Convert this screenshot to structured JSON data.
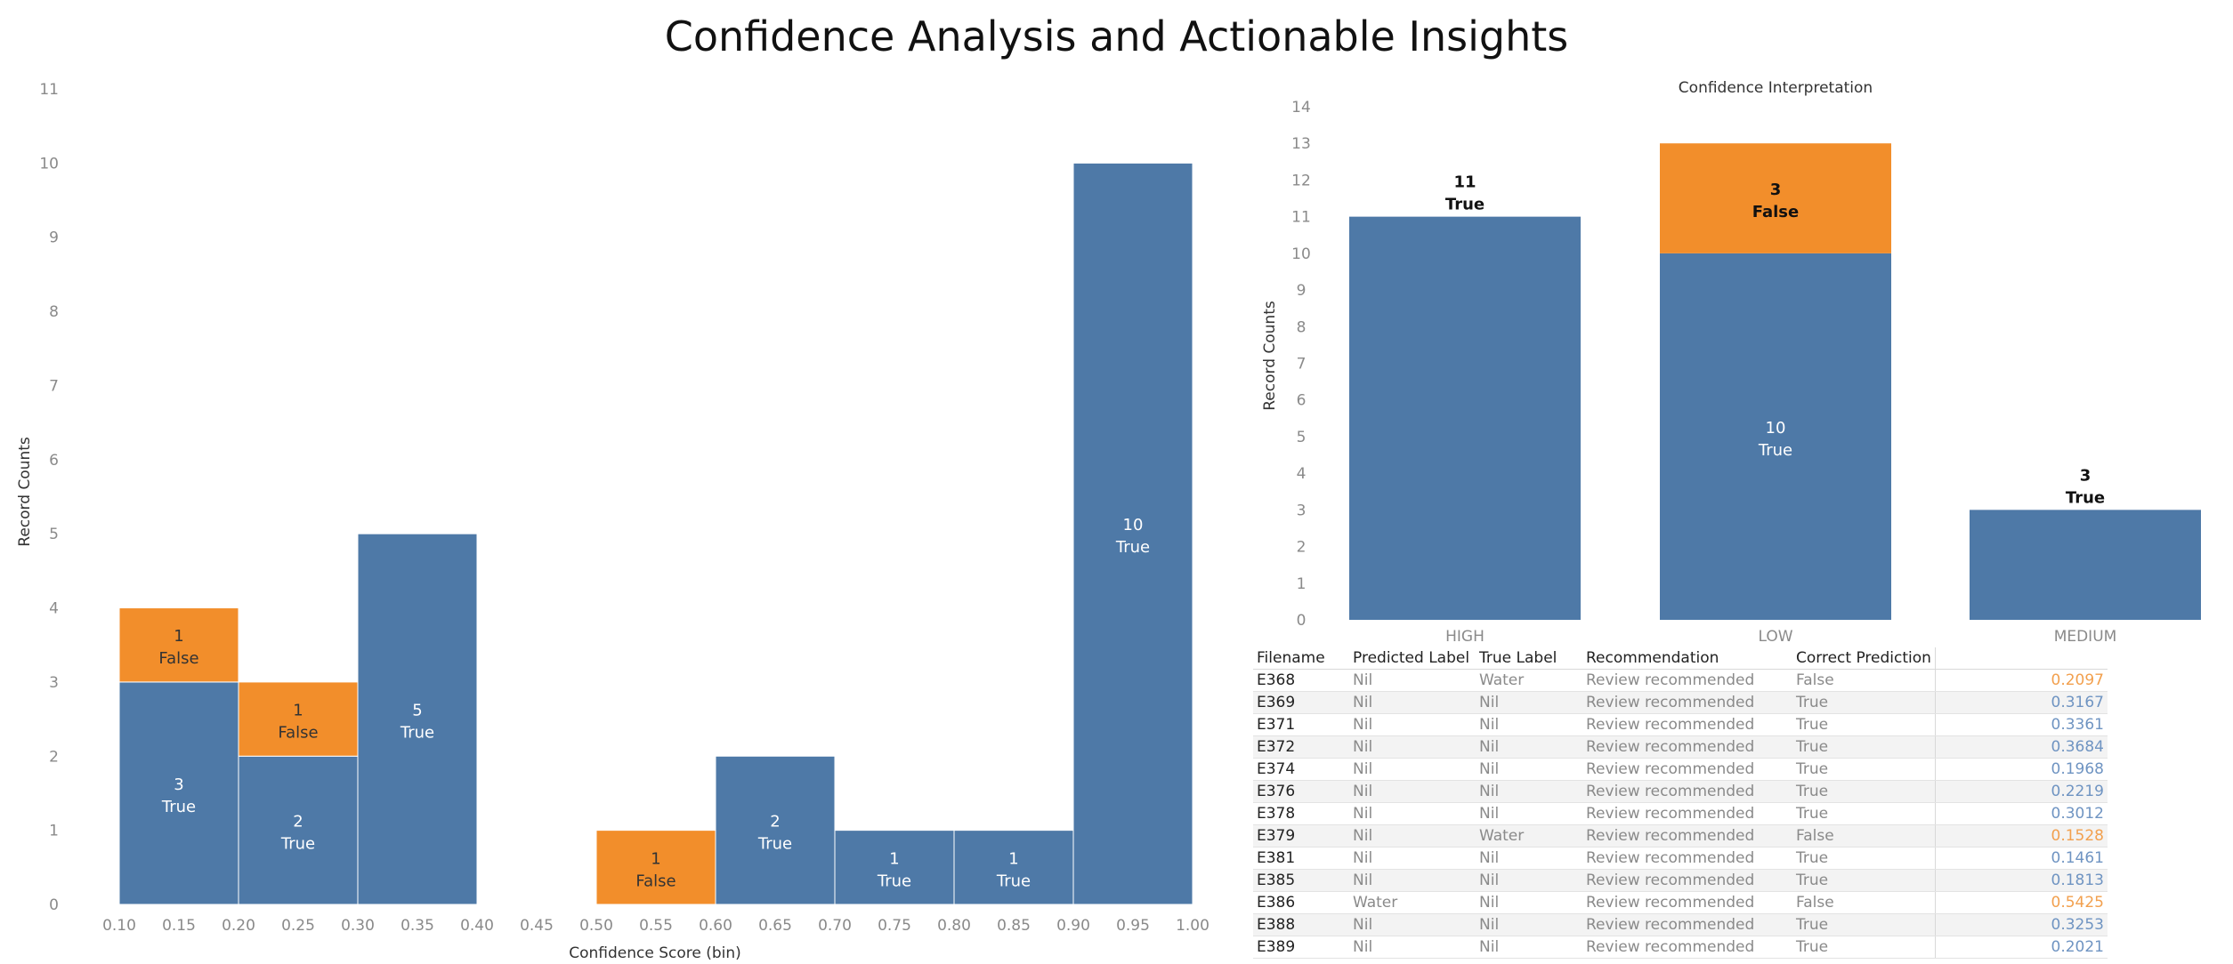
{
  "page": {
    "title": "Confidence Analysis and Actionable Insights"
  },
  "colors": {
    "true": "#4e79a7",
    "false": "#f28e2b",
    "true_hex_score": "#6f94c2",
    "false_hex_score": "#f2a04e"
  },
  "chart_data": [
    {
      "type": "bar",
      "subtype": "stacked histogram",
      "title": "",
      "xlabel": "Confidence Score (bin)",
      "ylabel": "Record Counts",
      "x_ticks": [
        "0.10",
        "0.15",
        "0.20",
        "0.25",
        "0.30",
        "0.35",
        "0.40",
        "0.45",
        "0.50",
        "0.55",
        "0.60",
        "0.65",
        "0.70",
        "0.75",
        "0.80",
        "0.85",
        "0.90",
        "0.95",
        "1.00"
      ],
      "y_ticks": [
        "0",
        "1",
        "2",
        "3",
        "4",
        "5",
        "6",
        "7",
        "8",
        "9",
        "10",
        "11"
      ],
      "xlim": [
        0.1,
        1.0
      ],
      "ylim": [
        0,
        11
      ],
      "grid": false,
      "bins": [
        {
          "start": 0.1,
          "end": 0.2,
          "segments": [
            {
              "label": "True",
              "count": 3
            },
            {
              "label": "False",
              "count": 1
            }
          ]
        },
        {
          "start": 0.2,
          "end": 0.3,
          "segments": [
            {
              "label": "True",
              "count": 2
            },
            {
              "label": "False",
              "count": 1
            }
          ]
        },
        {
          "start": 0.3,
          "end": 0.4,
          "segments": [
            {
              "label": "True",
              "count": 5
            }
          ]
        },
        {
          "start": 0.5,
          "end": 0.6,
          "segments": [
            {
              "label": "False",
              "count": 1
            }
          ]
        },
        {
          "start": 0.6,
          "end": 0.7,
          "segments": [
            {
              "label": "True",
              "count": 2
            }
          ]
        },
        {
          "start": 0.7,
          "end": 0.8,
          "segments": [
            {
              "label": "True",
              "count": 1
            }
          ]
        },
        {
          "start": 0.8,
          "end": 0.9,
          "segments": [
            {
              "label": "True",
              "count": 1
            }
          ]
        },
        {
          "start": 0.9,
          "end": 1.0,
          "segments": [
            {
              "label": "True",
              "count": 10
            }
          ]
        }
      ]
    },
    {
      "type": "bar",
      "subtype": "stacked",
      "title": "Confidence Interpretation",
      "xlabel": "",
      "ylabel": "Record Counts",
      "categories": [
        "HIGH",
        "LOW",
        "MEDIUM"
      ],
      "y_ticks": [
        "0",
        "1",
        "2",
        "3",
        "4",
        "5",
        "6",
        "7",
        "8",
        "9",
        "10",
        "11",
        "12",
        "13",
        "14"
      ],
      "ylim": [
        0,
        14
      ],
      "grid": false,
      "series": [
        {
          "name": "True",
          "values": [
            11,
            10,
            3
          ]
        },
        {
          "name": "False",
          "values": [
            0,
            3,
            0
          ]
        }
      ]
    }
  ],
  "table": {
    "columns": [
      "Filename",
      "Predicted Label",
      "True Label",
      "Recommendation",
      "Correct Prediction",
      ""
    ],
    "rows": [
      {
        "filename": "E368",
        "predicted": "Nil",
        "true_label": "Water",
        "recommendation": "Review recommended",
        "correct": "False",
        "score": "0.2097"
      },
      {
        "filename": "E369",
        "predicted": "Nil",
        "true_label": "Nil",
        "recommendation": "Review recommended",
        "correct": "True",
        "score": "0.3167"
      },
      {
        "filename": "E371",
        "predicted": "Nil",
        "true_label": "Nil",
        "recommendation": "Review recommended",
        "correct": "True",
        "score": "0.3361"
      },
      {
        "filename": "E372",
        "predicted": "Nil",
        "true_label": "Nil",
        "recommendation": "Review recommended",
        "correct": "True",
        "score": "0.3684"
      },
      {
        "filename": "E374",
        "predicted": "Nil",
        "true_label": "Nil",
        "recommendation": "Review recommended",
        "correct": "True",
        "score": "0.1968"
      },
      {
        "filename": "E376",
        "predicted": "Nil",
        "true_label": "Nil",
        "recommendation": "Review recommended",
        "correct": "True",
        "score": "0.2219"
      },
      {
        "filename": "E378",
        "predicted": "Nil",
        "true_label": "Nil",
        "recommendation": "Review recommended",
        "correct": "True",
        "score": "0.3012"
      },
      {
        "filename": "E379",
        "predicted": "Nil",
        "true_label": "Water",
        "recommendation": "Review recommended",
        "correct": "False",
        "score": "0.1528"
      },
      {
        "filename": "E381",
        "predicted": "Nil",
        "true_label": "Nil",
        "recommendation": "Review recommended",
        "correct": "True",
        "score": "0.1461"
      },
      {
        "filename": "E385",
        "predicted": "Nil",
        "true_label": "Nil",
        "recommendation": "Review recommended",
        "correct": "True",
        "score": "0.1813"
      },
      {
        "filename": "E386",
        "predicted": "Water",
        "true_label": "Nil",
        "recommendation": "Review recommended",
        "correct": "False",
        "score": "0.5425"
      },
      {
        "filename": "E388",
        "predicted": "Nil",
        "true_label": "Nil",
        "recommendation": "Review recommended",
        "correct": "True",
        "score": "0.3253"
      },
      {
        "filename": "E389",
        "predicted": "Nil",
        "true_label": "Nil",
        "recommendation": "Review recommended",
        "correct": "True",
        "score": "0.2021"
      }
    ]
  }
}
